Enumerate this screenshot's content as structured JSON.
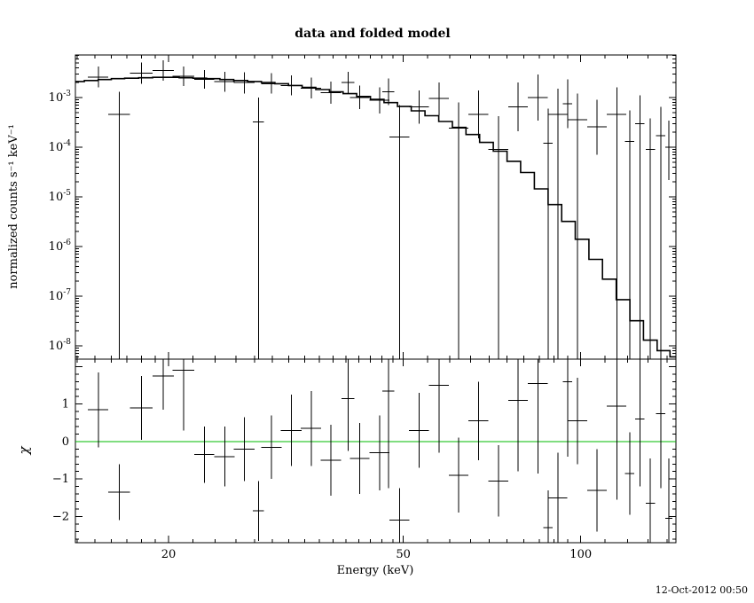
{
  "timestamp": "12-Oct-2012 00:50",
  "colors": {
    "foreground": "#000000",
    "background": "#ffffff",
    "model_line": "#000000",
    "zero_line": "#00bb00"
  },
  "chart_data": {
    "type": "scatter",
    "title": "data and folded model",
    "legend": "none",
    "grid": false,
    "x_axis": {
      "label": "Energy (keV)",
      "scale": "log",
      "min": 13.9,
      "max": 145,
      "major_ticks": [
        20,
        50,
        100
      ],
      "minor_ticks": [
        14,
        15,
        16,
        17,
        18,
        19,
        22,
        24,
        26,
        28,
        30,
        32,
        34,
        36,
        38,
        40,
        42,
        44,
        46,
        48,
        55,
        60,
        65,
        70,
        75,
        80,
        85,
        90,
        95,
        110,
        120,
        130,
        140
      ]
    },
    "top_panel": {
      "ylabel": "normalized counts s⁻¹ keV⁻¹",
      "y_scale": "log",
      "y_max_exp": -2.143,
      "y_min_exp": -8.268,
      "decade_labels": [
        -3,
        -4,
        -5,
        -6,
        -7,
        -8
      ]
    },
    "bottom_panel": {
      "ylabel": "χ",
      "y_scale": "linear",
      "y_min": -2.7,
      "y_max": 2.2,
      "major_ticks": [
        -2,
        -1,
        0,
        1
      ]
    },
    "model_step": {
      "e": [
        14.0,
        14.8,
        15.6,
        16.4,
        17.3,
        18.3,
        19.3,
        20.3,
        21.4,
        22.6,
        23.8,
        25.1,
        26.5,
        28.0,
        29.5,
        31.1,
        32.8,
        34.6,
        36.5,
        38.5,
        40.6,
        42.8,
        45.2,
        47.6,
        50.2,
        53.0,
        55.9,
        59.0,
        62.2,
        65.6,
        69.2,
        73.0,
        77.0,
        81.2,
        85.7,
        90.4,
        95.3,
        100.5,
        106.0,
        111.8,
        118.0,
        124.4,
        131.2,
        138.4,
        145.0
      ],
      "y": [
        0.0021,
        0.0022,
        0.0023,
        0.0024,
        0.00245,
        0.0025,
        0.00255,
        0.00255,
        0.0025,
        0.00245,
        0.0024,
        0.0023,
        0.0022,
        0.0021,
        0.002,
        0.0019,
        0.00175,
        0.0016,
        0.00145,
        0.0013,
        0.0012,
        0.00105,
        0.00092,
        0.00079,
        0.00066,
        0.00054,
        0.00043,
        0.00033,
        0.00025,
        0.00018,
        0.000125,
        8.3e-05,
        5.2e-05,
        3.1e-05,
        1.45e-05,
        7e-06,
        3.2e-06,
        1.4e-06,
        5.5e-07,
        2.2e-07,
        8.5e-08,
        3.2e-08,
        1.3e-08,
        8e-09,
        6e-09
      ]
    },
    "point_fields": [
      "energy_keV",
      "half_bin_width",
      "counts",
      "counts_err_low",
      "counts_err_high",
      "chi",
      "chi_err"
    ],
    "points": [
      [
        15.2,
        0.6,
        0.0026,
        0.0016,
        0.0042,
        0.85,
        1.0
      ],
      [
        16.5,
        0.7,
        0.00046,
        0,
        0.0013,
        -1.35,
        0.75
      ],
      [
        18.0,
        0.8,
        0.0031,
        0.0019,
        0.0051,
        0.9,
        0.85
      ],
      [
        19.6,
        0.8,
        0.0035,
        0.0022,
        0.0056,
        1.75,
        0.9
      ],
      [
        21.2,
        0.9,
        0.0027,
        0.0017,
        0.0042,
        1.9,
        1.6
      ],
      [
        23.0,
        0.9,
        0.0023,
        0.0015,
        0.0036,
        -0.35,
        0.75
      ],
      [
        24.9,
        1.0,
        0.0021,
        0.0013,
        0.0033,
        -0.4,
        0.8
      ],
      [
        26.9,
        1.1,
        0.002,
        0.0012,
        0.0032,
        -0.2,
        0.85
      ],
      [
        28.4,
        0.6,
        0.00032,
        0,
        0.001,
        -1.85,
        0.8
      ],
      [
        29.9,
        1.2,
        0.0019,
        0.0012,
        0.0031,
        -0.15,
        0.85
      ],
      [
        32.3,
        1.3,
        0.00175,
        0.0011,
        0.0028,
        0.3,
        0.95
      ],
      [
        34.9,
        1.4,
        0.00155,
        0.00095,
        0.0025,
        0.35,
        1.0
      ],
      [
        37.7,
        1.5,
        0.00125,
        0.00075,
        0.0021,
        -0.5,
        0.95
      ],
      [
        40.3,
        1.0,
        0.002,
        0.0012,
        0.0033,
        1.15,
        1.4
      ],
      [
        42.2,
        1.6,
        0.001,
        0.00058,
        0.00175,
        -0.45,
        0.95
      ],
      [
        45.6,
        1.8,
        0.00088,
        0.00048,
        0.0016,
        -0.3,
        1.0
      ],
      [
        47.2,
        1.1,
        0.0013,
        0.0007,
        0.0024,
        1.35,
        2.6
      ],
      [
        49.3,
        1.9,
        0.00016,
        0,
        0.0007,
        -2.1,
        0.85
      ],
      [
        53.2,
        2.1,
        0.00065,
        0.0003,
        0.0014,
        0.3,
        1.0
      ],
      [
        57.5,
        2.2,
        0.00095,
        0.00044,
        0.002,
        1.5,
        1.8
      ],
      [
        62.1,
        2.4,
        0.00024,
        0,
        0.0008,
        -0.9,
        1.0
      ],
      [
        67.1,
        2.6,
        0.00046,
        0.00015,
        0.0014,
        0.55,
        1.05
      ],
      [
        72.5,
        2.8,
        9e-05,
        0,
        0.00042,
        -1.05,
        0.95
      ],
      [
        78.3,
        3.0,
        0.00065,
        0.00021,
        0.002,
        1.1,
        1.9
      ],
      [
        84.6,
        3.3,
        0.001,
        0.00034,
        0.0029,
        1.55,
        2.4
      ],
      [
        88.0,
        1.6,
        0.00012,
        0,
        0.0006,
        -2.3,
        1.0
      ],
      [
        91.4,
        3.5,
        0.00046,
        0,
        0.0015,
        -1.5,
        1.2
      ],
      [
        95.0,
        1.7,
        0.00075,
        0.00024,
        0.0023,
        1.6,
        2.0
      ],
      [
        98.7,
        3.8,
        0.00036,
        0,
        0.0012,
        0.55,
        1.15
      ],
      [
        106.6,
        4.1,
        0.00026,
        7e-05,
        0.0009,
        -1.3,
        1.1
      ],
      [
        115.1,
        4.4,
        0.00046,
        0,
        0.0016,
        0.95,
        2.5
      ],
      [
        121.0,
        2.2,
        0.00013,
        0,
        0.00055,
        -0.85,
        1.1
      ],
      [
        126.0,
        2.3,
        0.0003,
        0,
        0.0011,
        0.6,
        1.8
      ],
      [
        131.2,
        2.4,
        9e-05,
        0,
        0.00038,
        -1.65,
        1.2
      ],
      [
        136.6,
        2.5,
        0.00017,
        0,
        0.00065,
        0.75,
        2.0
      ],
      [
        141.0,
        2.0,
        0.0001,
        2.2e-05,
        0.00034,
        -2.05,
        1.6
      ]
    ]
  }
}
